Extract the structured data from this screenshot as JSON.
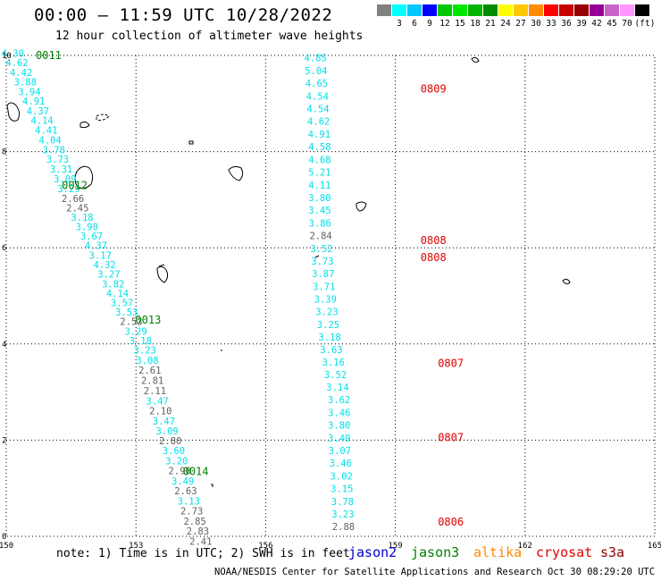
{
  "header": {
    "title": "00:00 – 11:59 UTC 10/28/2022",
    "subtitle": "12 hour collection of altimeter wave heights"
  },
  "legend": {
    "colors": [
      "#808080",
      "#00ffff",
      "#00c8ff",
      "#0000ff",
      "#00c800",
      "#00e600",
      "#00b400",
      "#008c00",
      "#ffff00",
      "#ffc800",
      "#ff8c00",
      "#ff0000",
      "#c80000",
      "#960000",
      "#960096",
      "#c864c8",
      "#ff96ff",
      "#000000"
    ],
    "ticks": [
      "3",
      "6",
      "9",
      "12",
      "15",
      "18",
      "21",
      "24",
      "27",
      "30",
      "33",
      "36",
      "39",
      "42",
      "45",
      "70"
    ],
    "unit": "(ft)"
  },
  "map": {
    "lon_ticks": [
      "150",
      "153",
      "156",
      "159",
      "162",
      "165"
    ],
    "lat_ticks": [
      "0",
      "2",
      "4",
      "6",
      "8",
      "10"
    ],
    "colors": {
      "cyan": "#00e0e8",
      "gray": "#606060",
      "green": "#008000",
      "red": "#e00000"
    },
    "tracks": [
      {
        "times": [
          {
            "label": "0011",
            "lon": 150.6,
            "lat": 10.0
          },
          {
            "label": "0012",
            "lon": 151.2,
            "lat": 7.3
          },
          {
            "label": "0013",
            "lon": 152.9,
            "lat": 4.5
          },
          {
            "label": "0014",
            "lon": 154.0,
            "lat": 1.35
          }
        ],
        "obs": [
          {
            "v": "4.30",
            "c": "cyan"
          },
          {
            "v": "4.62",
            "c": "cyan"
          },
          {
            "v": "4.42",
            "c": "cyan"
          },
          {
            "v": "3.88",
            "c": "cyan"
          },
          {
            "v": "3.94",
            "c": "cyan"
          },
          {
            "v": "4.91",
            "c": "cyan"
          },
          {
            "v": "4.37",
            "c": "cyan"
          },
          {
            "v": "4.14",
            "c": "cyan"
          },
          {
            "v": "4.41",
            "c": "cyan"
          },
          {
            "v": "4.04",
            "c": "cyan"
          },
          {
            "v": "3.78",
            "c": "cyan"
          },
          {
            "v": "3.73",
            "c": "cyan"
          },
          {
            "v": "3.31",
            "c": "cyan"
          },
          {
            "v": "3.09",
            "c": "cyan"
          },
          {
            "v": "3.29",
            "c": "cyan"
          },
          {
            "v": "2.66",
            "c": "gray"
          },
          {
            "v": "2.45",
            "c": "gray"
          },
          {
            "v": "3.18",
            "c": "cyan"
          },
          {
            "v": "3.90",
            "c": "cyan"
          },
          {
            "v": "3.67",
            "c": "cyan"
          },
          {
            "v": "4.37",
            "c": "cyan"
          },
          {
            "v": "3.17",
            "c": "cyan"
          },
          {
            "v": "4.32",
            "c": "cyan"
          },
          {
            "v": "3.27",
            "c": "cyan"
          },
          {
            "v": "3.82",
            "c": "cyan"
          },
          {
            "v": "4.14",
            "c": "cyan"
          },
          {
            "v": "3.57",
            "c": "cyan"
          },
          {
            "v": "3.53",
            "c": "cyan"
          },
          {
            "v": "2.53",
            "c": "gray"
          },
          {
            "v": "3.29",
            "c": "cyan"
          },
          {
            "v": "3.18",
            "c": "cyan"
          },
          {
            "v": "3.23",
            "c": "cyan"
          },
          {
            "v": "3.08",
            "c": "cyan"
          },
          {
            "v": "2.61",
            "c": "gray"
          },
          {
            "v": "2.81",
            "c": "gray"
          },
          {
            "v": "2.11",
            "c": "gray"
          },
          {
            "v": "3.47",
            "c": "cyan"
          },
          {
            "v": "2.10",
            "c": "gray"
          },
          {
            "v": "3.47",
            "c": "cyan"
          },
          {
            "v": "3.09",
            "c": "cyan"
          },
          {
            "v": "2.80",
            "c": "gray"
          },
          {
            "v": "3.60",
            "c": "cyan"
          },
          {
            "v": "3.20",
            "c": "cyan"
          },
          {
            "v": "2.98",
            "c": "gray"
          },
          {
            "v": "3.49",
            "c": "cyan"
          },
          {
            "v": "2.63",
            "c": "gray"
          },
          {
            "v": "3.13",
            "c": "cyan"
          },
          {
            "v": "2.73",
            "c": "gray"
          },
          {
            "v": "2.85",
            "c": "gray"
          },
          {
            "v": "2.83",
            "c": "gray"
          },
          {
            "v": "2.41",
            "c": "gray"
          }
        ]
      },
      {
        "times": [
          {
            "label": "0809",
            "lon": 159.5,
            "lat": 9.3
          },
          {
            "label": "0808",
            "lon": 159.5,
            "lat": 6.15
          },
          {
            "label": "0808",
            "lon": 159.5,
            "lat": 5.8
          },
          {
            "label": "0807",
            "lon": 159.9,
            "lat": 3.6
          },
          {
            "label": "0807",
            "lon": 159.9,
            "lat": 2.05
          },
          {
            "label": "0806",
            "lon": 159.9,
            "lat": 0.3
          }
        ],
        "obs": [
          {
            "v": "4.85",
            "c": "cyan"
          },
          {
            "v": "5.04",
            "c": "cyan"
          },
          {
            "v": "4.65",
            "c": "cyan"
          },
          {
            "v": "4.54",
            "c": "cyan"
          },
          {
            "v": "4.54",
            "c": "cyan"
          },
          {
            "v": "4.62",
            "c": "cyan"
          },
          {
            "v": "4.91",
            "c": "cyan"
          },
          {
            "v": "4.58",
            "c": "cyan"
          },
          {
            "v": "4.68",
            "c": "cyan"
          },
          {
            "v": "5.21",
            "c": "cyan"
          },
          {
            "v": "4.11",
            "c": "cyan"
          },
          {
            "v": "3.80",
            "c": "cyan"
          },
          {
            "v": "3.45",
            "c": "cyan"
          },
          {
            "v": "3.86",
            "c": "cyan"
          },
          {
            "v": "2.84",
            "c": "gray"
          },
          {
            "v": "3.52",
            "c": "cyan"
          },
          {
            "v": "3.73",
            "c": "cyan"
          },
          {
            "v": "3.87",
            "c": "cyan"
          },
          {
            "v": "3.71",
            "c": "cyan"
          },
          {
            "v": "3.39",
            "c": "cyan"
          },
          {
            "v": "3.23",
            "c": "cyan"
          },
          {
            "v": "3.25",
            "c": "cyan"
          },
          {
            "v": "3.18",
            "c": "cyan"
          },
          {
            "v": "3.63",
            "c": "cyan"
          },
          {
            "v": "3.16",
            "c": "cyan"
          },
          {
            "v": "3.52",
            "c": "cyan"
          },
          {
            "v": "3.14",
            "c": "cyan"
          },
          {
            "v": "3.62",
            "c": "cyan"
          },
          {
            "v": "3.46",
            "c": "cyan"
          },
          {
            "v": "3.80",
            "c": "cyan"
          },
          {
            "v": "3.49",
            "c": "cyan"
          },
          {
            "v": "3.07",
            "c": "cyan"
          },
          {
            "v": "3.46",
            "c": "cyan"
          },
          {
            "v": "3.02",
            "c": "cyan"
          },
          {
            "v": "3.15",
            "c": "cyan"
          },
          {
            "v": "3.78",
            "c": "cyan"
          },
          {
            "v": "3.23",
            "c": "cyan"
          },
          {
            "v": "2.88",
            "c": "gray"
          }
        ]
      }
    ]
  },
  "footer": {
    "note": "note: 1) Time is in UTC; 2) SWH is in feet",
    "missions": [
      {
        "name": "jason2",
        "color": "#0000cc"
      },
      {
        "name": "jason3",
        "color": "#008000"
      },
      {
        "name": "altika",
        "color": "#ff8c00"
      },
      {
        "name": "cryosat",
        "color": "#e00000"
      },
      {
        "name": "s3a",
        "color": "#8b0000"
      }
    ],
    "credit": "NOAA/NESDIS Center for Satellite Applications and Research   Oct 30 08:29:20 UTC 2022"
  }
}
